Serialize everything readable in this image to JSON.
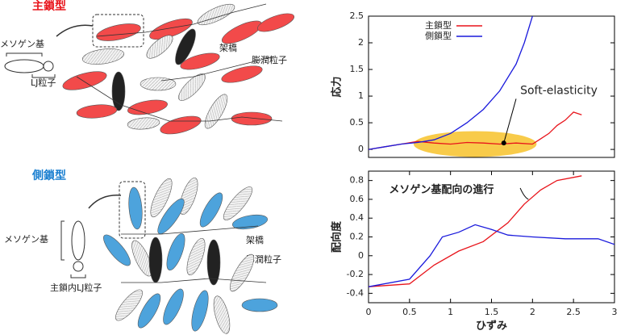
{
  "chart_data": [
    {
      "type": "line",
      "ylabel": "応力",
      "xlim": [
        0,
        3
      ],
      "ylim": [
        -0.15,
        2.5
      ],
      "yticks": [
        0,
        0.5,
        1,
        1.5,
        2,
        2.5
      ],
      "annotation": "Soft-elasticity",
      "series": [
        {
          "name": "主鎖型",
          "color": "#e8141b",
          "x": [
            0,
            0.2,
            0.4,
            0.6,
            0.8,
            1.0,
            1.2,
            1.4,
            1.6,
            1.8,
            2.0,
            2.1,
            2.2,
            2.3,
            2.4,
            2.5,
            2.6
          ],
          "values": [
            0,
            0.05,
            0.1,
            0.15,
            0.12,
            0.1,
            0.13,
            0.12,
            0.1,
            0.12,
            0.1,
            0.2,
            0.3,
            0.45,
            0.55,
            0.7,
            0.65
          ]
        },
        {
          "name": "側鎖型",
          "color": "#1a1adc",
          "x": [
            0,
            0.2,
            0.4,
            0.6,
            0.8,
            1.0,
            1.2,
            1.4,
            1.6,
            1.8,
            1.9,
            2.0
          ],
          "values": [
            0,
            0.05,
            0.1,
            0.13,
            0.18,
            0.3,
            0.5,
            0.75,
            1.1,
            1.6,
            2.0,
            2.5
          ]
        }
      ]
    },
    {
      "type": "line",
      "ylabel": "配向度",
      "xlabel": "ひずみ",
      "xlim": [
        0,
        3
      ],
      "ylim": [
        -0.5,
        0.9
      ],
      "xticks": [
        0,
        0.5,
        1,
        1.5,
        2,
        2.5,
        3
      ],
      "yticks": [
        -0.4,
        -0.2,
        0,
        0.2,
        0.4,
        0.6,
        0.8
      ],
      "annotation": "メソゲン基配向の進行",
      "series": [
        {
          "name": "主鎖型",
          "color": "#e8141b",
          "x": [
            0,
            0.5,
            0.8,
            1.1,
            1.4,
            1.7,
            1.9,
            2.1,
            2.3,
            2.6
          ],
          "values": [
            -0.33,
            -0.3,
            -0.1,
            0.05,
            0.15,
            0.35,
            0.55,
            0.7,
            0.8,
            0.85
          ]
        },
        {
          "name": "側鎖型",
          "color": "#1a1adc",
          "x": [
            0,
            0.5,
            0.75,
            0.9,
            1.1,
            1.3,
            1.5,
            1.7,
            2.0,
            2.4,
            2.8,
            3.0
          ],
          "values": [
            -0.33,
            -0.25,
            0,
            0.2,
            0.25,
            0.33,
            0.28,
            0.22,
            0.2,
            0.18,
            0.18,
            0.12
          ]
        }
      ]
    }
  ],
  "diagram": {
    "main": {
      "title": "主鎖型",
      "mesogen": "メソゲン基",
      "lj": "LJ粒子",
      "crosslink": "架橋",
      "swell": "膨潤粒子"
    },
    "side": {
      "title": "側鎖型",
      "mesogen": "メソゲン基",
      "lj": "主鎖内LJ粒子",
      "crosslink": "架橋",
      "swell": "膨潤粒子"
    }
  }
}
